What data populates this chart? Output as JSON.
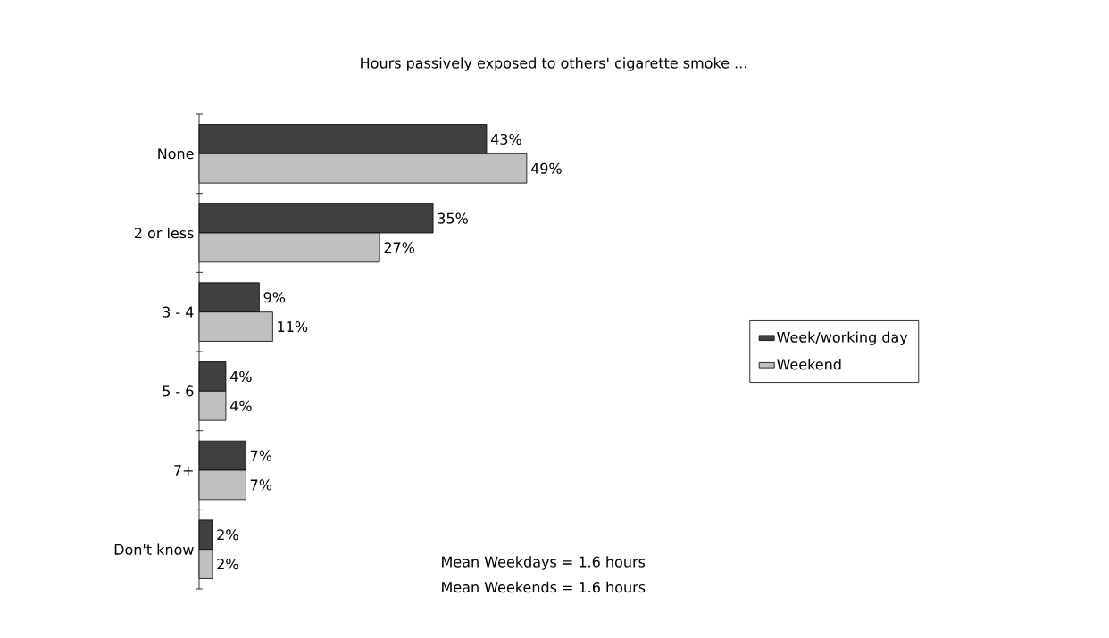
{
  "chart_data": {
    "type": "bar",
    "orientation": "horizontal",
    "title": "Hours passively exposed to others' cigarette smoke ...",
    "categories": [
      "None",
      "2 or less",
      "3 - 4",
      "5 - 6",
      "7+",
      "Don't know"
    ],
    "series": [
      {
        "name": "Week/working day",
        "color": "#404040",
        "values": [
          43,
          35,
          9,
          4,
          7,
          2
        ],
        "value_labels": [
          "43%",
          "35%",
          "9%",
          "4%",
          "7%",
          "2%"
        ]
      },
      {
        "name": "Weekend",
        "color": "#c0c0c0",
        "values": [
          49,
          27,
          11,
          4,
          7,
          2
        ],
        "value_labels": [
          "49%",
          "27%",
          "11%",
          "4%",
          "7%",
          "2%"
        ]
      }
    ],
    "legend": "right",
    "annotations": [
      "Mean Weekdays = 1.6 hours",
      "Mean Weekends = 1.6 hours"
    ]
  }
}
